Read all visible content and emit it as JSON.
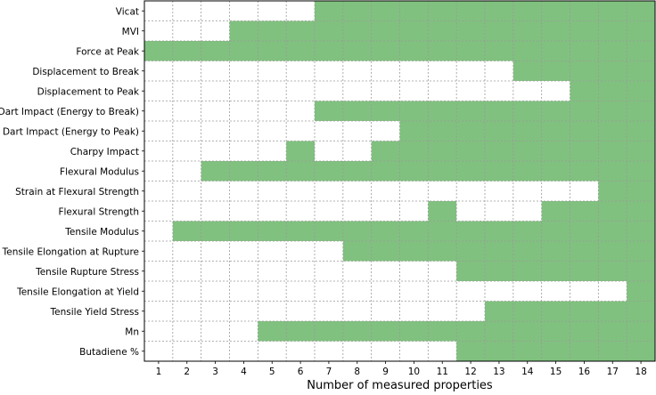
{
  "chart_data": {
    "type": "heatmap",
    "xlabel": "Number of measured properties",
    "x_ticks": [
      1,
      2,
      3,
      4,
      5,
      6,
      7,
      8,
      9,
      10,
      11,
      12,
      13,
      14,
      15,
      16,
      17,
      18
    ],
    "colors": {
      "measured": "#80c17f",
      "empty": "#ffffff",
      "grid": "#9a9a9a"
    },
    "grid": true,
    "rows": [
      {
        "label": "Vicat",
        "filled": [
          7,
          8,
          9,
          10,
          11,
          12,
          13,
          14,
          15,
          16,
          17,
          18
        ]
      },
      {
        "label": "MVI",
        "filled": [
          4,
          5,
          6,
          7,
          8,
          9,
          10,
          11,
          12,
          13,
          14,
          15,
          16,
          17,
          18
        ]
      },
      {
        "label": "Force at Peak",
        "filled": [
          1,
          2,
          3,
          4,
          5,
          6,
          7,
          8,
          9,
          10,
          11,
          12,
          13,
          14,
          15,
          16,
          17,
          18
        ]
      },
      {
        "label": "Displacement to Break",
        "filled": [
          14,
          15,
          16,
          17,
          18
        ]
      },
      {
        "label": "Displacement to Peak",
        "filled": [
          16,
          17,
          18
        ]
      },
      {
        "label": "Dart Impact (Energy to Break)",
        "filled": [
          7,
          8,
          9,
          10,
          11,
          12,
          13,
          14,
          15,
          16,
          17,
          18
        ]
      },
      {
        "label": "Dart Impact (Energy to Peak)",
        "filled": [
          10,
          11,
          12,
          13,
          14,
          15,
          16,
          17,
          18
        ]
      },
      {
        "label": "Charpy Impact",
        "filled": [
          6,
          9,
          10,
          11,
          12,
          13,
          14,
          15,
          16,
          17,
          18
        ]
      },
      {
        "label": "Flexural Modulus",
        "filled": [
          3,
          4,
          5,
          6,
          7,
          8,
          9,
          10,
          11,
          12,
          13,
          14,
          15,
          16,
          17,
          18
        ]
      },
      {
        "label": "Strain at Flexural Strength",
        "filled": [
          17,
          18
        ]
      },
      {
        "label": "Flexural Strength",
        "filled": [
          11,
          15,
          16,
          17,
          18
        ]
      },
      {
        "label": "Tensile Modulus",
        "filled": [
          2,
          3,
          4,
          5,
          6,
          7,
          8,
          9,
          10,
          11,
          12,
          13,
          14,
          15,
          16,
          17,
          18
        ]
      },
      {
        "label": "Tensile Elongation at Rupture",
        "filled": [
          8,
          9,
          10,
          11,
          12,
          13,
          14,
          15,
          16,
          17,
          18
        ]
      },
      {
        "label": "Tensile Rupture Stress",
        "filled": [
          12,
          13,
          14,
          15,
          16,
          17,
          18
        ]
      },
      {
        "label": "Tensile Elongation at Yield",
        "filled": [
          18
        ]
      },
      {
        "label": "Tensile Yield Stress",
        "filled": [
          13,
          14,
          15,
          16,
          17,
          18
        ]
      },
      {
        "label": "Mn",
        "filled": [
          5,
          6,
          7,
          8,
          9,
          10,
          11,
          12,
          13,
          14,
          15,
          16,
          17,
          18
        ]
      },
      {
        "label": "Butadiene %",
        "filled": [
          12,
          13,
          14,
          15,
          16,
          17,
          18
        ]
      }
    ]
  }
}
